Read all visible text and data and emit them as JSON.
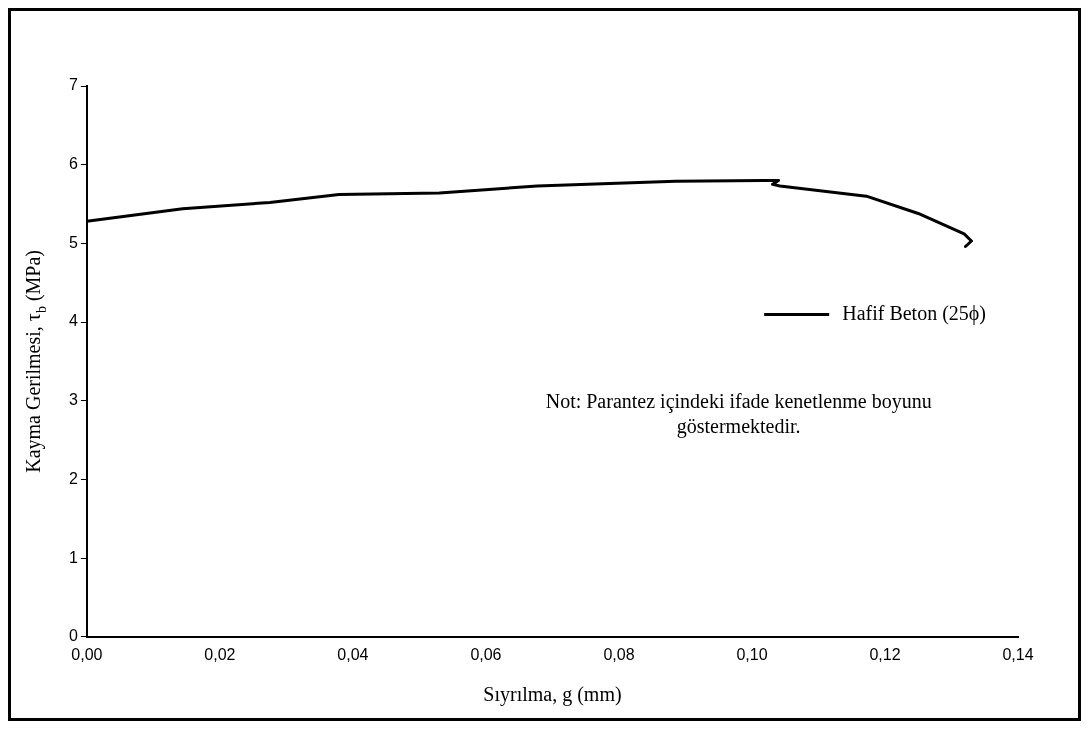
{
  "chart_data": {
    "type": "line",
    "xlabel": "Sıyrılma, g (mm)",
    "ylabel": "Kayma Gerilmesi, τ$_{b}$ (MPa)",
    "xlim": [
      0,
      0.14
    ],
    "xticks": [
      {
        "value": 0,
        "label": "0,00"
      },
      {
        "value": 0.02,
        "label": "0,02"
      },
      {
        "value": 0.04,
        "label": "0,04"
      },
      {
        "value": 0.06,
        "label": "0,06"
      },
      {
        "value": 0.08,
        "label": "0,08"
      },
      {
        "value": 0.1,
        "label": "0,10"
      },
      {
        "value": 0.12,
        "label": "0,12"
      },
      {
        "value": 0.14,
        "label": "0,14"
      }
    ],
    "ylim": [
      0,
      7
    ],
    "yticks": [
      0,
      1,
      2,
      3,
      4,
      5,
      6,
      7
    ],
    "grid": false,
    "legend": "right",
    "marker": "none",
    "line_style": "solid",
    "series": [
      {
        "name": "Hafif Beton (25ϕ)",
        "color": "#000000",
        "x": [
          0,
          0.0144,
          0.0275,
          0.0379,
          0.053,
          0.0677,
          0.0885,
          0.104,
          0.1031,
          0.1042,
          0.1172,
          0.125,
          0.1319,
          0.133,
          0.1321
        ],
        "values": [
          5.28,
          5.44,
          5.52,
          5.62,
          5.64,
          5.73,
          5.79,
          5.8,
          5.75,
          5.73,
          5.6,
          5.38,
          5.12,
          5.03,
          4.96
        ]
      }
    ],
    "annotations": [
      "Not: Parantez içindeki ifade kenetlenme boyunu göstermektedir."
    ]
  }
}
